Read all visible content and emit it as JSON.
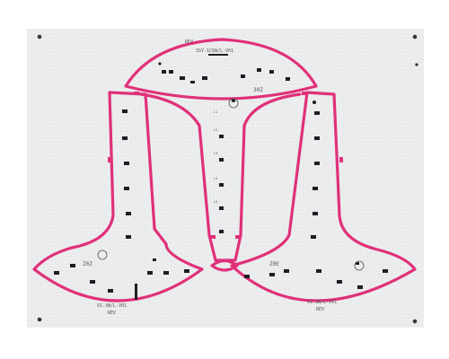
{
  "photo": {
    "board_color": "#ecedee",
    "background_color": "#ffffff",
    "outline_color": "#e0307a",
    "pad_color": "#1e1e22"
  },
  "top_piece": {
    "code": "30Z",
    "silk_lines": [
      "REV",
      "3SY-1C6W/L-V01"
    ],
    "led_labels": [
      "L1",
      "L2",
      "L3",
      "L4",
      "L5",
      "L6",
      "L7",
      "L8"
    ]
  },
  "left_piece": {
    "code": "Z0Z",
    "silk_lines": [
      "V1-3W/L-V01",
      "REV"
    ]
  },
  "right_piece": {
    "code": "Z0E",
    "silk_lines": [
      "V1-3W/L-V01",
      "REV"
    ]
  }
}
